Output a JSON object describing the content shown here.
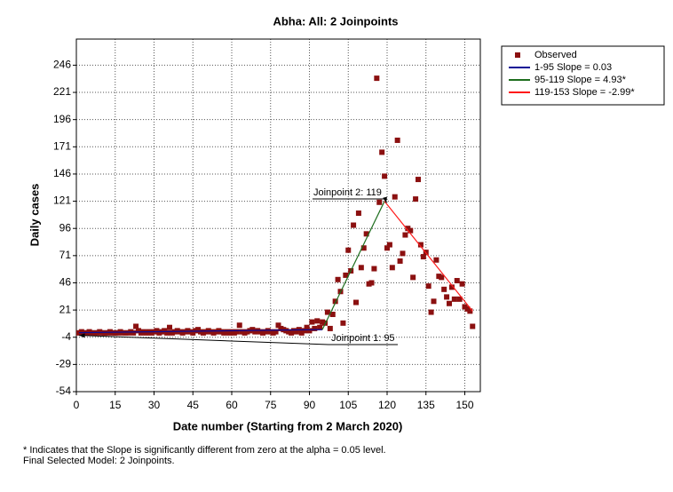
{
  "chart_data": {
    "type": "scatter",
    "title": "Abha: All: 2 Joinpoints",
    "x_label": "Date number (Starting from 2 March 2020)",
    "y_label": "Daily cases",
    "xlim": [
      0,
      156
    ],
    "ylim": [
      -54,
      270
    ],
    "xticks": [
      0,
      15,
      30,
      45,
      60,
      75,
      90,
      105,
      120,
      135,
      150
    ],
    "yticks": [
      -54,
      -29,
      -4,
      21,
      46,
      71,
      96,
      121,
      146,
      171,
      196,
      221,
      246
    ],
    "grid": true,
    "legend": "outside-right",
    "series": [
      {
        "name": "Observed",
        "type": "scatter",
        "color": "#8b1010",
        "x": [
          1,
          2,
          3,
          4,
          5,
          6,
          7,
          8,
          9,
          10,
          11,
          12,
          13,
          14,
          15,
          16,
          17,
          18,
          19,
          20,
          21,
          22,
          23,
          24,
          25,
          26,
          27,
          28,
          29,
          30,
          31,
          32,
          33,
          34,
          35,
          36,
          37,
          38,
          39,
          40,
          41,
          42,
          43,
          44,
          45,
          46,
          47,
          48,
          49,
          50,
          51,
          52,
          53,
          54,
          55,
          56,
          57,
          58,
          59,
          60,
          61,
          62,
          63,
          64,
          65,
          66,
          67,
          68,
          69,
          70,
          71,
          72,
          73,
          74,
          75,
          76,
          77,
          78,
          79,
          80,
          81,
          82,
          83,
          84,
          85,
          86,
          87,
          88,
          89,
          90,
          91,
          92,
          93,
          94,
          95,
          96,
          97,
          98,
          99,
          100,
          101,
          102,
          103,
          104,
          105,
          106,
          107,
          108,
          109,
          110,
          111,
          112,
          113,
          114,
          115,
          116,
          117,
          118,
          119,
          120,
          121,
          122,
          123,
          124,
          125,
          126,
          127,
          128,
          129,
          130,
          131,
          132,
          133,
          134,
          135,
          136,
          137,
          138,
          139,
          140,
          141,
          142,
          143,
          144,
          145,
          146,
          147,
          148,
          149,
          150,
          151,
          152,
          153
        ],
        "values": [
          0,
          1,
          0,
          0,
          1,
          0,
          0,
          0,
          1,
          0,
          0,
          0,
          1,
          0,
          0,
          0,
          1,
          0,
          0,
          0,
          1,
          0,
          6,
          2,
          0,
          1,
          0,
          1,
          0,
          1,
          2,
          0,
          1,
          2,
          0,
          5,
          0,
          1,
          2,
          1,
          0,
          1,
          2,
          1,
          0,
          2,
          3,
          1,
          0,
          1,
          2,
          1,
          0,
          1,
          2,
          1,
          0,
          1,
          0,
          1,
          0,
          1,
          7,
          1,
          0,
          1,
          2,
          3,
          1,
          2,
          1,
          0,
          1,
          2,
          1,
          0,
          1,
          7,
          4,
          3,
          2,
          1,
          0,
          2,
          1,
          3,
          0,
          2,
          5,
          2,
          10,
          4,
          11,
          5,
          10,
          9,
          19,
          4,
          17,
          29,
          49,
          38,
          9,
          53,
          76,
          57,
          99,
          28,
          110,
          60,
          78,
          91,
          45,
          46,
          59,
          234,
          120,
          166,
          144,
          78,
          81,
          60,
          125,
          177,
          66,
          73,
          90,
          96,
          94,
          51,
          123,
          141,
          81,
          70,
          74,
          43,
          19,
          29,
          67,
          52,
          51,
          40,
          33,
          27,
          42,
          31,
          48,
          31,
          45,
          24,
          22,
          20,
          6
        ]
      },
      {
        "name": "1-95 Slope  =  0.03",
        "type": "line",
        "color": "#0a0a96",
        "x": [
          1,
          95
        ],
        "values": [
          0.2,
          3
        ]
      },
      {
        "name": "95-119 Slope  =  4.93*",
        "type": "line",
        "color": "#1e6e1e",
        "x": [
          95,
          119
        ],
        "values": [
          3,
          121
        ]
      },
      {
        "name": "119-153 Slope  = -2.99*",
        "type": "line",
        "color": "#ff1a1a",
        "x": [
          119,
          153
        ],
        "values": [
          121,
          20
        ]
      }
    ],
    "annotations": [
      "Joinpoint 2:  119",
      "Joinpoint 1:  95"
    ],
    "footnotes": [
      "* Indicates that the Slope is significantly different from zero at the alpha = 0.05 level.",
      "Final Selected Model: 2 Joinpoints."
    ]
  }
}
